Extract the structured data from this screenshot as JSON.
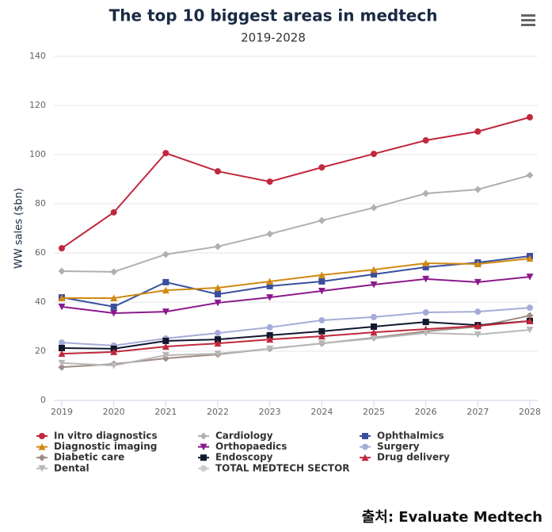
{
  "chart_data": {
    "type": "line",
    "title": "The top 10 biggest areas in medtech",
    "subtitle": "2019-2028",
    "y_label": "WW sales ($bn)",
    "categories": [
      "2019",
      "2020",
      "2021",
      "2022",
      "2023",
      "2024",
      "2025",
      "2026",
      "2027",
      "2028"
    ],
    "ylim": [
      0,
      140
    ],
    "yticks": [
      0,
      20,
      40,
      60,
      80,
      100,
      120,
      140
    ],
    "grid": true,
    "series": [
      {
        "name": "In vitro diagnostics",
        "color": "#c0283c",
        "marker": "circle",
        "values": [
          61.9,
          76.5,
          100.6,
          93.2,
          89,
          94.8,
          100.3,
          105.8,
          109.4,
          115.2
        ]
      },
      {
        "name": "Cardiology",
        "color": "#b0b0b0",
        "marker": "diamond",
        "values": [
          52.6,
          52.3,
          59.4,
          62.6,
          67.7,
          73.2,
          78.4,
          84.2,
          85.8,
          91.6
        ]
      },
      {
        "name": "Ophthalmics",
        "color": "#3a4f9c",
        "marker": "square",
        "values": [
          41.9,
          38.1,
          48.1,
          43.2,
          46.5,
          48.4,
          51.3,
          54.2,
          56.1,
          58.7
        ]
      },
      {
        "name": "Diagnostic imaging",
        "color": "#d08a12",
        "marker": "triangle",
        "values": [
          41.6,
          41.6,
          44.8,
          45.8,
          48.4,
          51,
          53.2,
          55.8,
          55.5,
          57.7
        ]
      },
      {
        "name": "Orthopaedics",
        "color": "#8b1a8b",
        "marker": "triangle-down",
        "values": [
          38.1,
          35.5,
          36.1,
          39.7,
          41.9,
          44.5,
          47.1,
          49.4,
          48.1,
          50.3
        ]
      },
      {
        "name": "Surgery",
        "color": "#a6acd8",
        "marker": "circle",
        "values": [
          23.5,
          22.3,
          25.2,
          27.4,
          29.7,
          32.6,
          33.9,
          35.8,
          36.1,
          37.7
        ]
      },
      {
        "name": "Diabetic care",
        "color": "#a08c84",
        "marker": "diamond",
        "values": [
          13.5,
          14.8,
          17.1,
          18.7,
          21,
          23.2,
          25.5,
          28.1,
          30,
          34.5
        ]
      },
      {
        "name": "Endoscopy",
        "color": "#10182e",
        "marker": "square",
        "values": [
          21.3,
          21,
          24.2,
          24.8,
          26.5,
          28.1,
          30,
          31.9,
          30.6,
          32.3
        ]
      },
      {
        "name": "Drug delivery",
        "color": "#c0283c",
        "marker": "triangle",
        "values": [
          19,
          19.7,
          21.9,
          23.2,
          24.8,
          26.1,
          27.7,
          29,
          30.3,
          32.3
        ]
      },
      {
        "name": "Dental",
        "color": "#b8b8b8",
        "marker": "triangle-down",
        "values": [
          15.2,
          14.2,
          18.4,
          19,
          21,
          23.2,
          25.2,
          27.4,
          26.8,
          28.7
        ]
      }
    ],
    "hidden_legend": [
      "TOTAL MEDTECH SECTOR"
    ],
    "source": "출처: Evaluate Medtech"
  }
}
